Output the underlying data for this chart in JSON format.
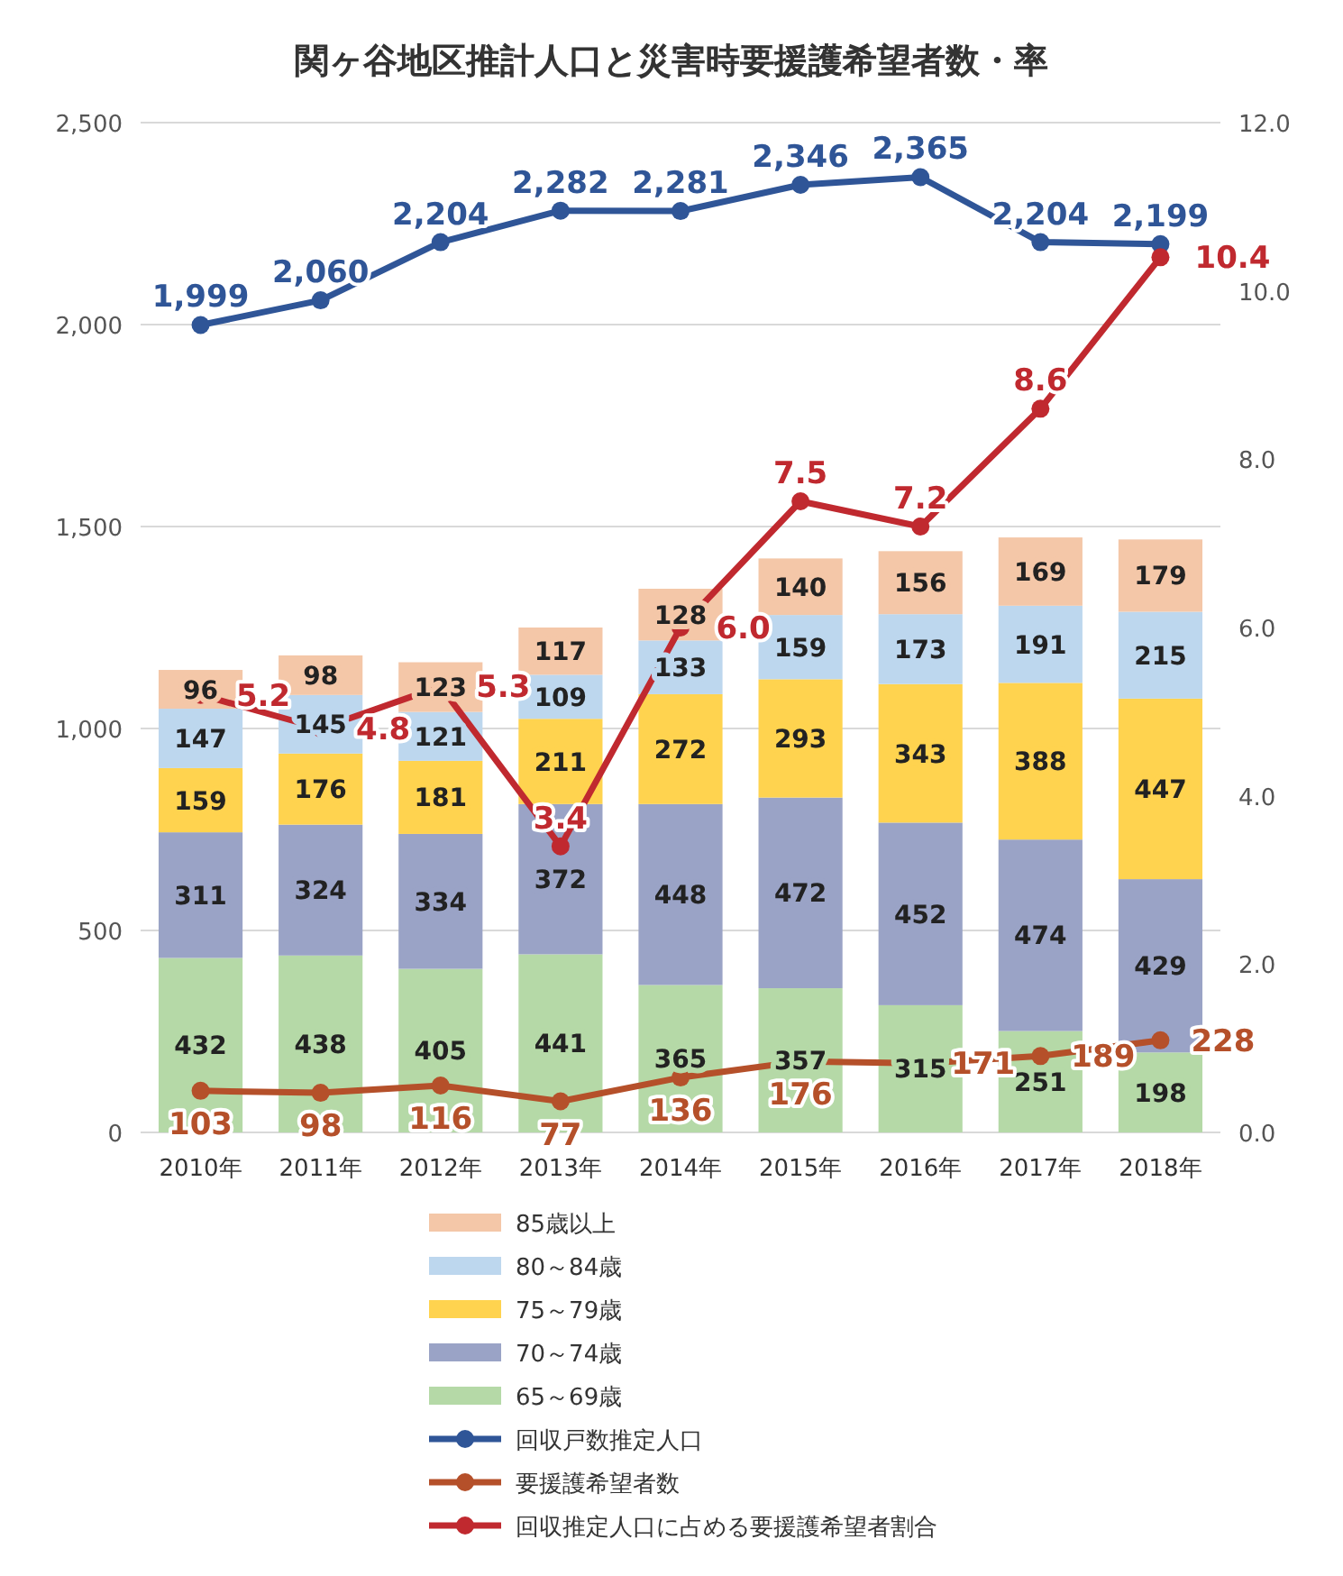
{
  "chart_data": {
    "type": "bar",
    "title": "関ヶ谷地区推計人口と災害時要援護希望者数・率",
    "categories": [
      "2010年",
      "2011年",
      "2012年",
      "2013年",
      "2014年",
      "2015年",
      "2016年",
      "2017年",
      "2018年"
    ],
    "stacked": true,
    "data_labels": true,
    "grid": "y",
    "legend": "bottom",
    "marker": "circle",
    "ylim": [
      0,
      2500
    ],
    "yticks": [
      {
        "value": 0,
        "label": "0"
      },
      {
        "value": 500,
        "label": "500"
      },
      {
        "value": 1000,
        "label": "1,000"
      },
      {
        "value": 1500,
        "label": "1,500"
      },
      {
        "value": 2000,
        "label": "2,000"
      },
      {
        "value": 2500,
        "label": "2,500"
      }
    ],
    "y2lim": [
      0,
      12
    ],
    "y2ticks": [
      {
        "value": 0,
        "label": "0.0"
      },
      {
        "value": 2,
        "label": "2.0"
      },
      {
        "value": 4,
        "label": "4.0"
      },
      {
        "value": 6,
        "label": "6.0"
      },
      {
        "value": 8,
        "label": "8.0"
      },
      {
        "value": 10,
        "label": "10.0"
      },
      {
        "value": 12,
        "label": "12.0"
      }
    ],
    "series": [
      {
        "name": "65～69歳",
        "color": "#b5d9a7",
        "values": [
          432,
          438,
          405,
          441,
          365,
          357,
          315,
          251,
          198
        ]
      },
      {
        "name": "70～74歳",
        "color": "#9aa3c6",
        "values": [
          311,
          324,
          334,
          372,
          448,
          472,
          452,
          474,
          429
        ]
      },
      {
        "name": "75～79歳",
        "color": "#ffd34f",
        "values": [
          159,
          176,
          181,
          211,
          272,
          293,
          343,
          388,
          447
        ]
      },
      {
        "name": "80～84歳",
        "color": "#bdd7ee",
        "values": [
          147,
          145,
          121,
          109,
          133,
          159,
          173,
          191,
          215
        ]
      },
      {
        "name": "85歳以上",
        "color": "#f4c7a8",
        "values": [
          96,
          98,
          123,
          117,
          128,
          140,
          156,
          169,
          179
        ]
      },
      {
        "name": "回収戸数推定人口",
        "type": "line",
        "color": "#2f5597",
        "values": [
          1999,
          2060,
          2204,
          2282,
          2281,
          2346,
          2365,
          2204,
          2199
        ],
        "value_labels": [
          "1,999",
          "2,060",
          "2,204",
          "2,282",
          "2,281",
          "2,346",
          "2,365",
          "2,204",
          "2,199"
        ]
      },
      {
        "name": "要援護希望者数",
        "type": "line",
        "color": "#b5502a",
        "values": [
          103,
          98,
          116,
          77,
          136,
          176,
          171,
          189,
          228
        ]
      },
      {
        "name": "回収推定人口に占める要援護希望者割合",
        "type": "line",
        "axis": "y2",
        "color": "#c0292f",
        "values": [
          5.2,
          4.8,
          5.3,
          3.4,
          6.0,
          7.5,
          7.2,
          8.6,
          10.4
        ],
        "value_labels": [
          "5.2",
          "4.8",
          "5.3",
          "3.4",
          "6.0",
          "7.5",
          "7.2",
          "8.6",
          "10.4"
        ]
      }
    ]
  }
}
